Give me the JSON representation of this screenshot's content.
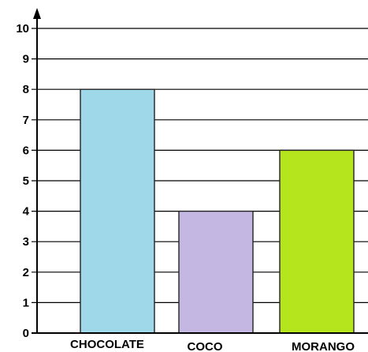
{
  "chart_data": {
    "type": "bar",
    "categories": [
      "CHOCOLATE",
      "COCO",
      "MORANGO"
    ],
    "values": [
      8,
      4,
      6
    ],
    "colors": [
      "#9fd8e8",
      "#c4b8e3",
      "#b5e61d"
    ],
    "ylim": [
      0,
      10
    ],
    "yticks": [
      "0",
      "1",
      "2",
      "3",
      "4",
      "5",
      "6",
      "7",
      "8",
      "9",
      "10"
    ],
    "grid": true,
    "title": "",
    "xlabel": "",
    "ylabel": ""
  }
}
